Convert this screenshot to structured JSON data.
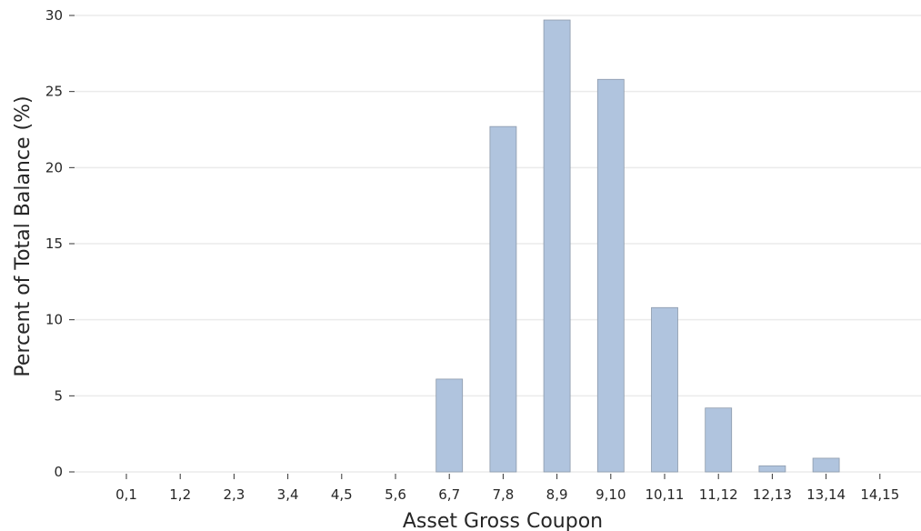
{
  "chart_data": {
    "type": "bar",
    "title": "",
    "xlabel": "Asset Gross Coupon",
    "ylabel": "Percent of Total Balance (%)",
    "ylim": [
      0,
      30
    ],
    "yticks": [
      0,
      5,
      10,
      15,
      20,
      25,
      30
    ],
    "grid": "horizontal",
    "categories": [
      "0,1",
      "1,2",
      "2,3",
      "3,4",
      "4,5",
      "5,6",
      "6,7",
      "7,8",
      "8,9",
      "9,10",
      "10,11",
      "11,12",
      "12,13",
      "13,14",
      "14,15"
    ],
    "values": [
      0,
      0,
      0,
      0,
      0,
      0,
      6.1,
      22.7,
      29.7,
      25.8,
      10.8,
      4.2,
      0.4,
      0.9,
      0
    ],
    "bar_color": "#b0c4de"
  }
}
